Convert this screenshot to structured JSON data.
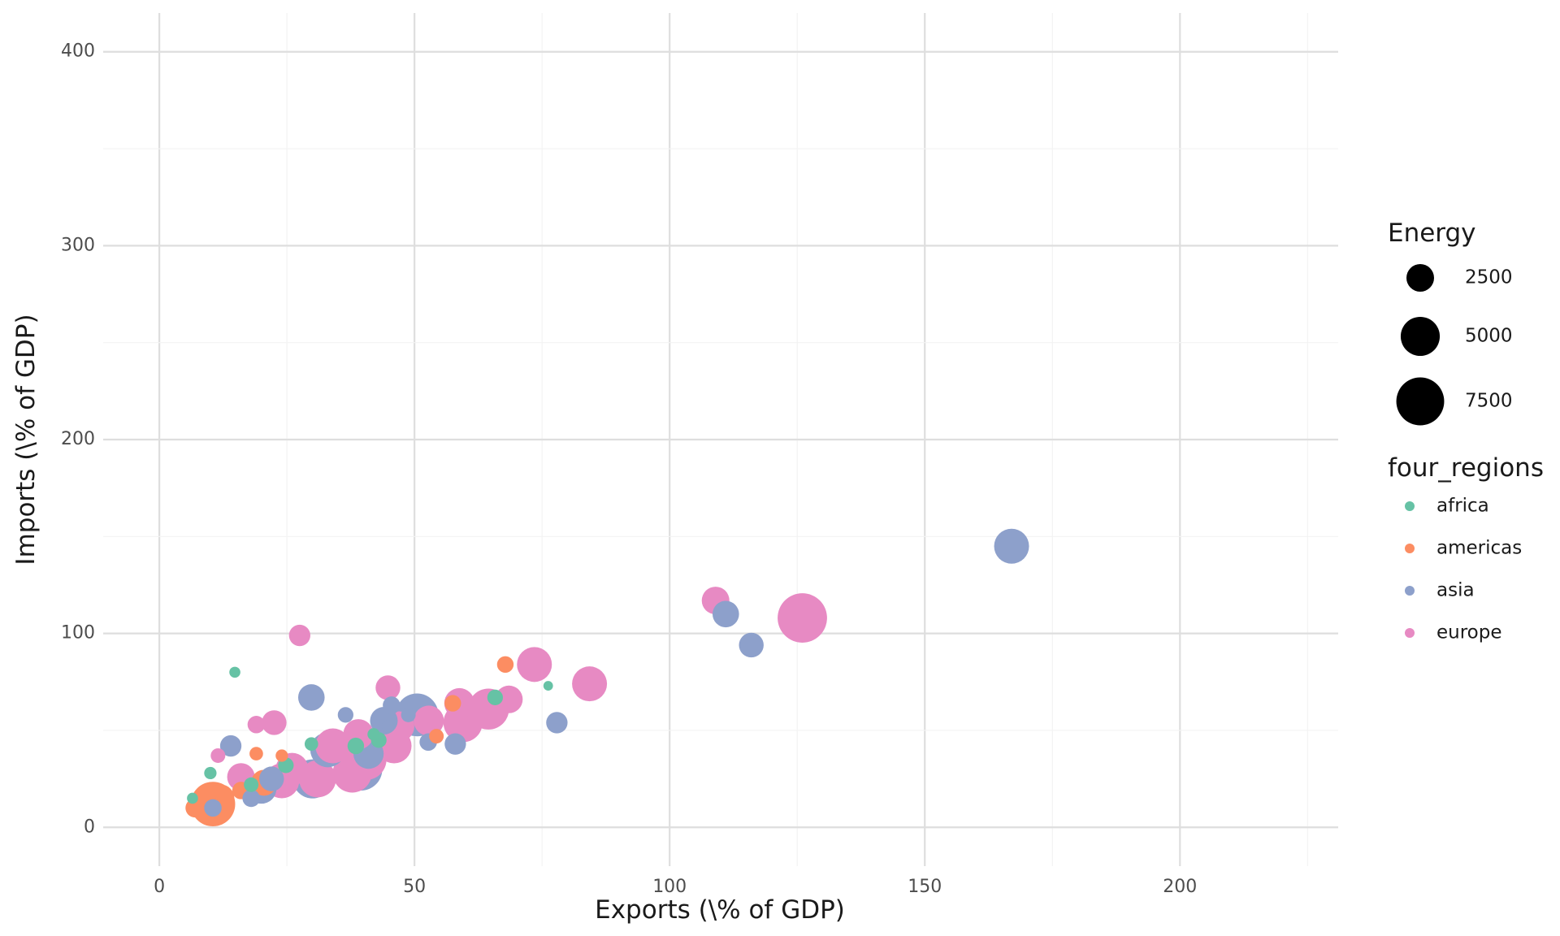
{
  "chart_data": {
    "type": "scatter",
    "xlabel": "Exports (\\% of GDP)",
    "ylabel": "Imports (\\% of GDP)",
    "xlim": [
      -11,
      231
    ],
    "ylim": [
      -20,
      420
    ],
    "x_ticks": [
      0,
      50,
      100,
      150,
      200
    ],
    "y_ticks": [
      0,
      100,
      200,
      300,
      400
    ],
    "grid": true,
    "legend_position": "right",
    "size_legend": {
      "title": "Energy",
      "entries": [
        {
          "label": "2500",
          "value": 2500
        },
        {
          "label": "5000",
          "value": 5000
        },
        {
          "label": "7500",
          "value": 7500
        }
      ]
    },
    "color_legend": {
      "title": "four_regions",
      "entries": [
        {
          "label": "africa",
          "color": "#66c2a5"
        },
        {
          "label": "americas",
          "color": "#fc8d62"
        },
        {
          "label": "asia",
          "color": "#8da0cb"
        },
        {
          "label": "europe",
          "color": "#e78ac3"
        }
      ]
    },
    "series": [
      {
        "name": "africa",
        "color": "#66c2a5",
        "points": [
          {
            "x": 6.5,
            "y": 15,
            "energy": 400
          },
          {
            "x": 10,
            "y": 28,
            "energy": 500
          },
          {
            "x": 14.8,
            "y": 80,
            "energy": 400
          },
          {
            "x": 18,
            "y": 22,
            "energy": 700
          },
          {
            "x": 24.8,
            "y": 32,
            "energy": 800
          },
          {
            "x": 29.8,
            "y": 43,
            "energy": 600
          },
          {
            "x": 38.5,
            "y": 42,
            "energy": 900
          },
          {
            "x": 43,
            "y": 45,
            "energy": 800
          },
          {
            "x": 65.8,
            "y": 67,
            "energy": 800
          },
          {
            "x": 76.2,
            "y": 73,
            "energy": 300
          },
          {
            "x": 42,
            "y": 48,
            "energy": 500
          }
        ]
      },
      {
        "name": "americas",
        "color": "#fc8d62",
        "points": [
          {
            "x": 7,
            "y": 10,
            "energy": 1200
          },
          {
            "x": 9,
            "y": 13,
            "energy": 2000
          },
          {
            "x": 10.5,
            "y": 12,
            "energy": 6500
          },
          {
            "x": 12,
            "y": 15,
            "energy": 2500
          },
          {
            "x": 16,
            "y": 19,
            "energy": 1000
          },
          {
            "x": 19,
            "y": 38,
            "energy": 600
          },
          {
            "x": 20.5,
            "y": 23,
            "energy": 2200
          },
          {
            "x": 24,
            "y": 37,
            "energy": 500
          },
          {
            "x": 54.3,
            "y": 47,
            "energy": 700
          },
          {
            "x": 57.5,
            "y": 64,
            "energy": 900
          },
          {
            "x": 67.8,
            "y": 84,
            "energy": 900
          }
        ]
      },
      {
        "name": "asia",
        "color": "#8da0cb",
        "points": [
          {
            "x": 10.5,
            "y": 10,
            "energy": 1000
          },
          {
            "x": 14,
            "y": 42,
            "energy": 1500
          },
          {
            "x": 18,
            "y": 15,
            "energy": 1000
          },
          {
            "x": 20,
            "y": 20,
            "energy": 3000
          },
          {
            "x": 22,
            "y": 25,
            "energy": 2000
          },
          {
            "x": 29.8,
            "y": 67,
            "energy": 2300
          },
          {
            "x": 30,
            "y": 25,
            "energy": 5000
          },
          {
            "x": 33,
            "y": 40,
            "energy": 4000
          },
          {
            "x": 36.5,
            "y": 58,
            "energy": 800
          },
          {
            "x": 39.5,
            "y": 30,
            "energy": 6000
          },
          {
            "x": 41,
            "y": 38,
            "energy": 3000
          },
          {
            "x": 44,
            "y": 55,
            "energy": 2500
          },
          {
            "x": 44.8,
            "y": 52,
            "energy": 500
          },
          {
            "x": 45.5,
            "y": 63,
            "energy": 1000
          },
          {
            "x": 48.8,
            "y": 58,
            "energy": 700
          },
          {
            "x": 50.5,
            "y": 58,
            "energy": 6000
          },
          {
            "x": 52.7,
            "y": 44,
            "energy": 1000
          },
          {
            "x": 58,
            "y": 43,
            "energy": 1500
          },
          {
            "x": 77.9,
            "y": 54,
            "energy": 1500
          },
          {
            "x": 111,
            "y": 110,
            "energy": 2300
          },
          {
            "x": 116,
            "y": 94,
            "energy": 2000
          },
          {
            "x": 167,
            "y": 145,
            "energy": 4000
          }
        ]
      },
      {
        "name": "europe",
        "color": "#e78ac3",
        "points": [
          {
            "x": 11.5,
            "y": 37,
            "energy": 700
          },
          {
            "x": 16,
            "y": 26,
            "energy": 2500
          },
          {
            "x": 19,
            "y": 53,
            "energy": 1000
          },
          {
            "x": 22.5,
            "y": 54,
            "energy": 2000
          },
          {
            "x": 24,
            "y": 24,
            "energy": 4000
          },
          {
            "x": 26,
            "y": 30,
            "energy": 3500
          },
          {
            "x": 27.5,
            "y": 99,
            "energy": 1500
          },
          {
            "x": 31,
            "y": 25,
            "energy": 4500
          },
          {
            "x": 34,
            "y": 42,
            "energy": 4000
          },
          {
            "x": 37.8,
            "y": 28,
            "energy": 5000
          },
          {
            "x": 39,
            "y": 48,
            "energy": 3000
          },
          {
            "x": 40.5,
            "y": 35,
            "energy": 5500
          },
          {
            "x": 44.8,
            "y": 72,
            "energy": 2000
          },
          {
            "x": 46,
            "y": 42,
            "energy": 4000
          },
          {
            "x": 47,
            "y": 52,
            "energy": 3000
          },
          {
            "x": 52.8,
            "y": 55,
            "energy": 3000
          },
          {
            "x": 58.8,
            "y": 64,
            "energy": 3000
          },
          {
            "x": 59.5,
            "y": 54,
            "energy": 5000
          },
          {
            "x": 64.5,
            "y": 61,
            "energy": 5500
          },
          {
            "x": 68.5,
            "y": 66,
            "energy": 2500
          },
          {
            "x": 73.5,
            "y": 84,
            "energy": 4000
          },
          {
            "x": 84.3,
            "y": 74,
            "energy": 4000
          },
          {
            "x": 109,
            "y": 117,
            "energy": 2500
          },
          {
            "x": 126,
            "y": 108,
            "energy": 8000
          }
        ]
      }
    ]
  }
}
